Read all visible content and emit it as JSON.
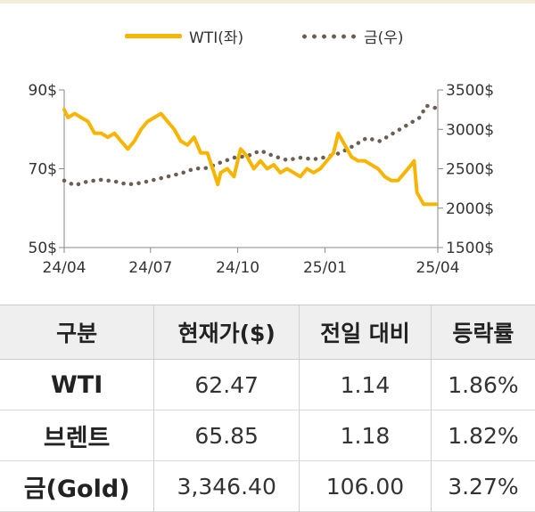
{
  "chart_data": {
    "type": "line",
    "legend": {
      "wti_label": "WTI(좌)",
      "gold_label": "금(우)",
      "placement": "top-center"
    },
    "x_ticks": [
      "24/04",
      "24/07",
      "24/10",
      "25/01",
      "25/04"
    ],
    "left_axis": {
      "ticks": [
        "90$",
        "70$",
        "50$"
      ],
      "min": 50,
      "max": 90
    },
    "right_axis": {
      "ticks": [
        "3500$",
        "3000$",
        "2500$",
        "2000$",
        "1500$"
      ],
      "min": 1500,
      "max": 3500
    },
    "grid": false,
    "series": [
      {
        "name": "WTI(좌)",
        "axis": "left",
        "color": "#f7b500",
        "dates": [
          "2024-04-01",
          "2024-04-05",
          "2024-04-12",
          "2024-04-19",
          "2024-04-26",
          "2024-05-03",
          "2024-05-10",
          "2024-05-17",
          "2024-05-24",
          "2024-05-31",
          "2024-06-07",
          "2024-06-14",
          "2024-06-21",
          "2024-06-28",
          "2024-07-05",
          "2024-07-12",
          "2024-07-19",
          "2024-07-26",
          "2024-08-02",
          "2024-08-09",
          "2024-08-16",
          "2024-08-23",
          "2024-08-30",
          "2024-09-06",
          "2024-09-10",
          "2024-09-13",
          "2024-09-20",
          "2024-09-27",
          "2024-10-04",
          "2024-10-08",
          "2024-10-11",
          "2024-10-18",
          "2024-10-25",
          "2024-11-01",
          "2024-11-08",
          "2024-11-15",
          "2024-11-22",
          "2024-11-29",
          "2024-12-06",
          "2024-12-13",
          "2024-12-20",
          "2024-12-27",
          "2025-01-03",
          "2025-01-10",
          "2025-01-15",
          "2025-01-22",
          "2025-01-29",
          "2025-02-05",
          "2025-02-12",
          "2025-02-19",
          "2025-02-26",
          "2025-03-05",
          "2025-03-12",
          "2025-03-19",
          "2025-03-26",
          "2025-04-02",
          "2025-04-05",
          "2025-04-08",
          "2025-04-15",
          "2025-04-22",
          "2025-04-28"
        ],
        "values": [
          85,
          83,
          84,
          83,
          82,
          79,
          79,
          78,
          79,
          77,
          75,
          77,
          80,
          82,
          83,
          84,
          82,
          80,
          77,
          76,
          78,
          74,
          74,
          69,
          66,
          69,
          70,
          68,
          75,
          74,
          73,
          70,
          72,
          70,
          71,
          69,
          70,
          69,
          68,
          70,
          69,
          70,
          72,
          74,
          79,
          76,
          73,
          72,
          72,
          71,
          70,
          68,
          67,
          67,
          69,
          71,
          72,
          64,
          61,
          61,
          61
        ]
      },
      {
        "name": "금(우)",
        "axis": "right",
        "color": "#6b5f52",
        "dates": [
          "2024-04-01",
          "2024-04-12",
          "2024-04-26",
          "2024-05-10",
          "2024-05-24",
          "2024-06-07",
          "2024-06-21",
          "2024-07-05",
          "2024-07-19",
          "2024-08-02",
          "2024-08-16",
          "2024-08-30",
          "2024-09-13",
          "2024-09-27",
          "2024-10-11",
          "2024-10-25",
          "2024-11-08",
          "2024-11-22",
          "2024-12-06",
          "2024-12-20",
          "2025-01-03",
          "2025-01-17",
          "2025-01-31",
          "2025-02-14",
          "2025-02-28",
          "2025-03-14",
          "2025-03-28",
          "2025-04-04",
          "2025-04-11",
          "2025-04-18",
          "2025-04-28"
        ],
        "values": [
          2350,
          2290,
          2340,
          2360,
          2340,
          2300,
          2320,
          2360,
          2400,
          2440,
          2500,
          2510,
          2580,
          2640,
          2660,
          2730,
          2660,
          2610,
          2640,
          2620,
          2650,
          2700,
          2790,
          2890,
          2850,
          2950,
          3050,
          3100,
          3150,
          3300,
          3270
        ]
      }
    ]
  },
  "table": {
    "headers": [
      "구분",
      "현재가($)",
      "전일 대비",
      "등락률"
    ],
    "rows": [
      {
        "label": "WTI",
        "price": "62.47",
        "change": "1.14",
        "rate": "1.86%"
      },
      {
        "label": "브렌트",
        "price": "65.85",
        "change": "1.18",
        "rate": "1.82%"
      },
      {
        "label": "금(Gold)",
        "price": "3,346.40",
        "change": "106.00",
        "rate": "3.27%"
      }
    ]
  }
}
